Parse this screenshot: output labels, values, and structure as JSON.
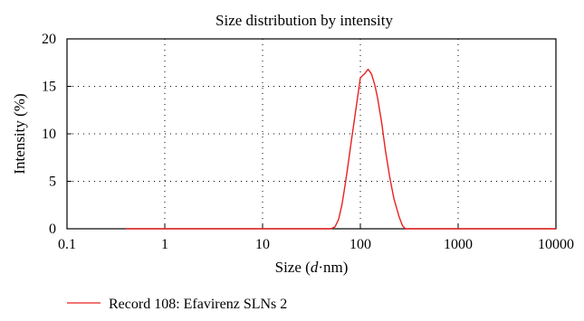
{
  "chart_data": {
    "type": "line",
    "title": "Size distribution by intensity",
    "xlabel_prefix": "Size (",
    "xlabel_italic": "d",
    "xlabel_suffix": "·nm)",
    "ylabel": "Intensity (%)",
    "x_scale": "log",
    "xlim": [
      0.1,
      10000
    ],
    "ylim": [
      0,
      20
    ],
    "x_ticks": [
      0.1,
      1,
      10,
      100,
      1000,
      10000
    ],
    "x_tick_labels": [
      "0.1",
      "1",
      "10",
      "100",
      "1000",
      "10000"
    ],
    "y_ticks": [
      0,
      5,
      10,
      15,
      20
    ],
    "y_tick_labels": [
      "0",
      "5",
      "10",
      "15",
      "20"
    ],
    "grid": true,
    "legend_position": "bottom-left",
    "series": [
      {
        "name": "Record 108: Efavirenz SLNs 2",
        "color": "#e8211f",
        "x": [
          0.4,
          50,
          55,
          60,
          65,
          70,
          75,
          80,
          90,
          100,
          110,
          120,
          130,
          140,
          150,
          165,
          180,
          200,
          220,
          250,
          270,
          290,
          300,
          10000
        ],
        "y": [
          0,
          0,
          0.2,
          1,
          2.6,
          4.7,
          6.8,
          8.9,
          12.6,
          15.9,
          16.3,
          16.8,
          16.3,
          15.2,
          13.8,
          11.2,
          8.3,
          5.4,
          3.2,
          1.2,
          0.3,
          0,
          0,
          0
        ]
      }
    ]
  }
}
